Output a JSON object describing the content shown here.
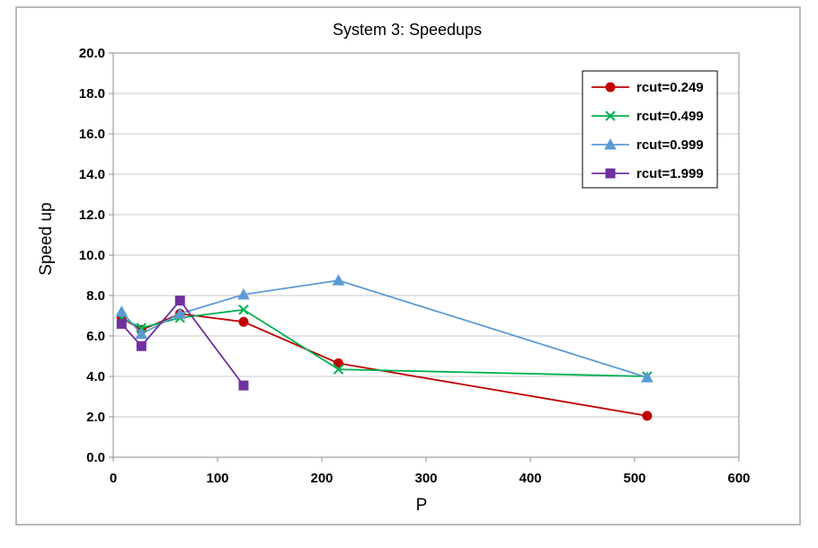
{
  "chart_data": {
    "type": "line",
    "title": "System 3: Speedups",
    "xlabel": "P",
    "ylabel": "Speed up",
    "xlim": [
      0,
      600
    ],
    "ylim": [
      0,
      20
    ],
    "xticks": [
      "0",
      "100",
      "200",
      "300",
      "400",
      "500",
      "600"
    ],
    "yticks": [
      "0.0",
      "2.0",
      "4.0",
      "6.0",
      "8.0",
      "10.0",
      "12.0",
      "14.0",
      "16.0",
      "18.0",
      "20.0"
    ],
    "grid": "horizontal",
    "legend_position": "top-right",
    "series": [
      {
        "name": "rcut=0.249",
        "color": "#c00000",
        "marker": "circle",
        "x": [
          8,
          27,
          64,
          125,
          216,
          512
        ],
        "y": [
          6.9,
          6.3,
          7.1,
          6.7,
          4.65,
          2.05
        ]
      },
      {
        "name": "rcut=0.499",
        "color": "#00b050",
        "marker": "x",
        "x": [
          8,
          27,
          64,
          125,
          216,
          512
        ],
        "y": [
          6.9,
          6.4,
          6.9,
          7.3,
          4.35,
          4.0
        ]
      },
      {
        "name": "rcut=0.999",
        "color": "#5b9bd5",
        "marker": "triangle",
        "x": [
          8,
          27,
          64,
          125,
          216,
          512
        ],
        "y": [
          7.2,
          6.1,
          7.1,
          8.05,
          8.75,
          3.95
        ]
      },
      {
        "name": "rcut=1.999",
        "color": "#7030a0",
        "marker": "square",
        "x": [
          8,
          27,
          64,
          125
        ],
        "y": [
          6.6,
          5.5,
          7.75,
          3.55
        ]
      }
    ]
  }
}
